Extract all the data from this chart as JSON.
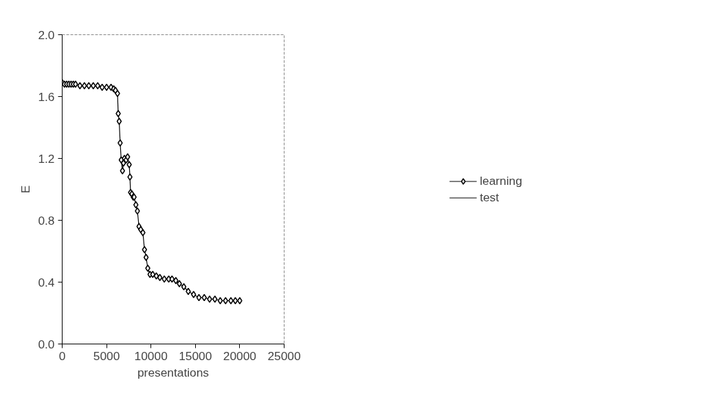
{
  "chart_data": {
    "type": "line",
    "xlabel": "presentations",
    "ylabel": "E",
    "x": [
      0,
      250,
      500,
      750,
      1000,
      1250,
      1500,
      2000,
      2500,
      3000,
      3500,
      4000,
      4500,
      5000,
      5500,
      5800,
      6000,
      6230,
      6310,
      6420,
      6530,
      6650,
      6790,
      6900,
      7010,
      7200,
      7370,
      7550,
      7630,
      7700,
      7850,
      8000,
      8100,
      8300,
      8470,
      8650,
      8850,
      9090,
      9270,
      9450,
      9640,
      9890,
      10200,
      10600,
      11000,
      11500,
      12000,
      12370,
      12800,
      13200,
      13700,
      14200,
      14800,
      15400,
      16000,
      16600,
      17200,
      17800,
      18400,
      19000,
      19500,
      20000
    ],
    "series": [
      {
        "name": "learning",
        "color": "#000000",
        "marker": "diamond",
        "values": [
          1.69,
          1.68,
          1.68,
          1.68,
          1.68,
          1.68,
          1.68,
          1.67,
          1.67,
          1.67,
          1.67,
          1.67,
          1.66,
          1.66,
          1.66,
          1.65,
          1.64,
          1.62,
          1.49,
          1.44,
          1.3,
          1.19,
          1.12,
          1.17,
          1.2,
          1.19,
          1.21,
          1.16,
          1.08,
          0.98,
          0.97,
          0.95,
          0.95,
          0.9,
          0.86,
          0.76,
          0.74,
          0.72,
          0.61,
          0.56,
          0.49,
          0.45,
          0.45,
          0.44,
          0.43,
          0.42,
          0.42,
          0.42,
          0.41,
          0.39,
          0.37,
          0.34,
          0.32,
          0.3,
          0.3,
          0.29,
          0.29,
          0.28,
          0.28,
          0.28,
          0.28,
          0.28
        ]
      },
      {
        "name": "test",
        "color": "#000000",
        "marker": "none",
        "values": [
          null,
          null,
          null,
          null,
          null,
          null,
          null,
          null,
          null,
          null,
          null,
          null,
          null,
          null,
          null,
          null,
          null,
          null,
          null,
          null,
          null,
          null,
          null,
          null,
          null,
          null,
          null,
          null,
          null,
          null,
          null,
          null,
          null,
          null,
          null,
          null,
          null,
          null,
          null,
          null,
          null,
          null,
          null,
          null,
          null,
          null,
          null,
          null,
          null,
          null,
          null,
          null,
          null,
          null,
          null,
          null,
          null,
          null,
          null,
          null,
          null,
          null
        ]
      }
    ],
    "xlim": [
      0,
      25000
    ],
    "xticks": [
      0,
      5000,
      10000,
      15000,
      20000,
      25000
    ],
    "ylim": [
      0.0,
      2.0
    ],
    "yticks": [
      {
        "value": 0,
        "label": "0.0"
      },
      {
        "value": 0.4,
        "label": "0.4"
      },
      {
        "value": 0.8,
        "label": "0.8"
      },
      {
        "value": 1.2,
        "label": "1.2"
      },
      {
        "value": 1.6,
        "label": "1.6"
      },
      {
        "value": 2,
        "label": "2.0"
      }
    ],
    "grid": false,
    "legend": "right",
    "line_style": "solid"
  }
}
